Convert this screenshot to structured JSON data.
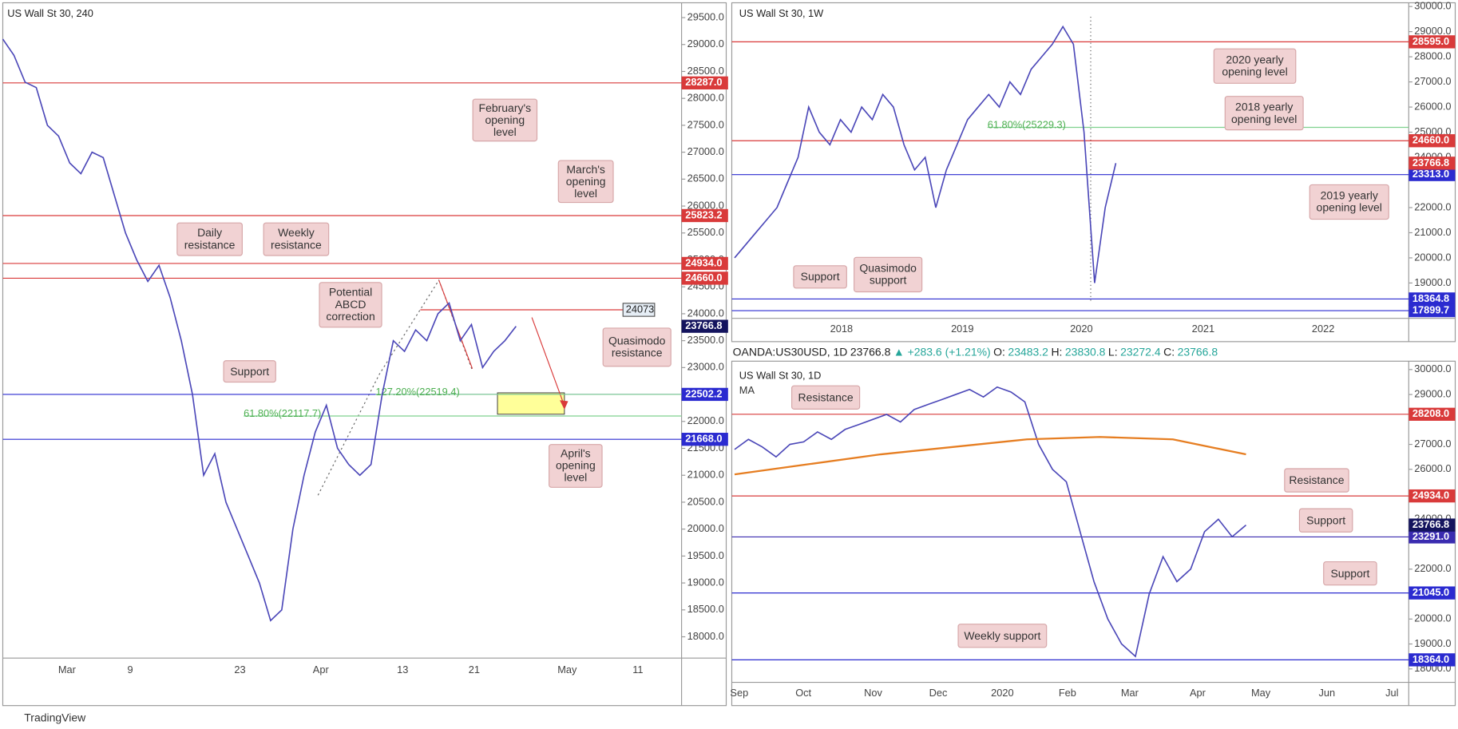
{
  "panels": [
    {
      "title": "US Wall St 30, 240",
      "ylim": [
        17604,
        29775
      ],
      "yticks": [
        {
          "value": 18000,
          "label": "18000.0"
        },
        {
          "value": 18500,
          "label": "18500.0"
        },
        {
          "value": 19000,
          "label": "19000.0"
        },
        {
          "value": 19500,
          "label": "19500.0"
        },
        {
          "value": 20000,
          "label": "20000.0"
        },
        {
          "value": 20500,
          "label": "20500.0"
        },
        {
          "value": 21000,
          "label": "21000.0"
        },
        {
          "value": 21500,
          "label": "21500.0"
        },
        {
          "value": 22000,
          "label": "22000.0"
        },
        {
          "value": 22500,
          "label": "22500.0"
        },
        {
          "value": 23000,
          "label": "23000.0"
        },
        {
          "value": 23500,
          "label": "23500.0"
        },
        {
          "value": 24000,
          "label": "24000.0"
        },
        {
          "value": 24500,
          "label": "24500.0"
        },
        {
          "value": 25000,
          "label": "25000.0"
        },
        {
          "value": 25500,
          "label": "25500.0"
        },
        {
          "value": 26000,
          "label": "26000.0"
        },
        {
          "value": 26500,
          "label": "26500.0"
        },
        {
          "value": 27000,
          "label": "27000.0"
        },
        {
          "value": 27500,
          "label": "27500.0"
        },
        {
          "value": 28000,
          "label": "28000.0"
        },
        {
          "value": 28500,
          "label": "28500.0"
        },
        {
          "value": 29000,
          "label": "29000.0"
        },
        {
          "value": 29500,
          "label": "29500.0"
        }
      ],
      "dates": [
        "Mar",
        "9",
        "23",
        "Apr",
        "13",
        "21",
        "May",
        "11"
      ],
      "levels": [
        {
          "value": 28287,
          "label": "28287.0",
          "color": "#d93a3a"
        },
        {
          "value": 25823.2,
          "label": "25823.2",
          "color": "#d93a3a"
        },
        {
          "value": 24934,
          "label": "24934.0",
          "color": "#d93a3a"
        },
        {
          "value": 24660,
          "label": "24660.0",
          "color": "#d93a3a"
        },
        {
          "value": 22502.2,
          "label": "22502.2",
          "color": "#2b2bd0"
        },
        {
          "value": 21668,
          "label": "21668.0",
          "color": "#2b2bd0"
        }
      ],
      "last": {
        "value": 23766.8,
        "label": "23766.8",
        "color": "#14145e"
      },
      "marker": 24073,
      "fibs": [
        {
          "value": 22519.4,
          "label": "127.20%(22519.4)"
        },
        {
          "value": 22117.7,
          "label": "61.80%(22117.7)"
        }
      ],
      "price": [
        29100,
        28800,
        28300,
        28200,
        27500,
        27300,
        26800,
        26600,
        27000,
        26900,
        26200,
        25500,
        25000,
        24600,
        24900,
        24300,
        23500,
        22500,
        21000,
        21400,
        20500,
        20000,
        19500,
        19000,
        18300,
        18500,
        20000,
        21000,
        21800,
        22300,
        21500,
        21200,
        21000,
        21200,
        22500,
        23500,
        23300,
        23700,
        23500,
        24000,
        24200,
        23500,
        23800,
        23000,
        23300,
        23500,
        23766.8
      ],
      "annotations": [
        "February's opening level",
        "March's opening level",
        "Daily resistance",
        "Weekly resistance",
        "Potential ABCD correction",
        "Quasimodo resistance",
        "Support",
        "April's opening level"
      ]
    },
    {
      "title": "US Wall St 30, 1W",
      "ylim": [
        17593,
        30148
      ],
      "yticks": [
        {
          "value": 18000,
          "label": "18000.0"
        },
        {
          "value": 19000,
          "label": "19000.0"
        },
        {
          "value": 20000,
          "label": "20000.0"
        },
        {
          "value": 21000,
          "label": "21000.0"
        },
        {
          "value": 22000,
          "label": "22000.0"
        },
        {
          "value": 24000,
          "label": "24000.0"
        },
        {
          "value": 25000,
          "label": "25000.0"
        },
        {
          "value": 26000,
          "label": "26000.0"
        },
        {
          "value": 27000,
          "label": "27000.0"
        },
        {
          "value": 28000,
          "label": "28000.0"
        },
        {
          "value": 29000,
          "label": "29000.0"
        },
        {
          "value": 30000,
          "label": "30000.0"
        }
      ],
      "dates": [
        "2018",
        "2019",
        "2020",
        "2021",
        "2022"
      ],
      "levels": [
        {
          "value": 28595,
          "label": "28595.0",
          "color": "#d93a3a"
        },
        {
          "value": 24660,
          "label": "24660.0",
          "color": "#d93a3a"
        },
        {
          "value": 23313,
          "label": "23313.0",
          "color": "#2b2bd0"
        },
        {
          "value": 18364.8,
          "label": "18364.8",
          "color": "#2b2bd0"
        },
        {
          "value": 17899.7,
          "label": "17899.7",
          "color": "#2b2bd0"
        }
      ],
      "last": {
        "value": 23766.8,
        "label": "23766.8",
        "color": "#d93a3a"
      },
      "fibs": [
        {
          "value": 25229.3,
          "label": "61.80%(25229.3)"
        }
      ],
      "price": [
        20000,
        20500,
        21000,
        21500,
        22000,
        23000,
        24000,
        26000,
        25000,
        24500,
        25500,
        25000,
        26000,
        25500,
        26500,
        26000,
        24500,
        23500,
        24000,
        22000,
        23500,
        24500,
        25500,
        26000,
        26500,
        26000,
        27000,
        26500,
        27500,
        28000,
        28500,
        29200,
        28500,
        25000,
        19000,
        22000,
        23766.8
      ],
      "annotations": [
        "2020 yearly opening level",
        "2018 yearly opening level",
        "2019 yearly opening level",
        "Support",
        "Quasimodo support"
      ]
    },
    {
      "title": "US Wall St 30, 1D",
      "subtitle": "MA",
      "ylim": [
        17463,
        30336
      ],
      "yticks": [
        {
          "value": 18000,
          "label": "18000.0"
        },
        {
          "value": 19000,
          "label": "19000.0"
        },
        {
          "value": 20000,
          "label": "20000.0"
        },
        {
          "value": 21000,
          "label": "21000.0"
        },
        {
          "value": 22000,
          "label": "22000.0"
        },
        {
          "value": 24000,
          "label": "24000.0"
        },
        {
          "value": 25000,
          "label": "25000.0"
        },
        {
          "value": 26000,
          "label": "26000.0"
        },
        {
          "value": 27000,
          "label": "27000.0"
        },
        {
          "value": 29000,
          "label": "29000.0"
        },
        {
          "value": 30000,
          "label": "30000.0"
        }
      ],
      "dates": [
        "Sep",
        "Oct",
        "Nov",
        "Dec",
        "2020",
        "Feb",
        "Mar",
        "Apr",
        "May",
        "Jun",
        "Jul"
      ],
      "levels": [
        {
          "value": 28208,
          "label": "28208.0",
          "color": "#d93a3a"
        },
        {
          "value": 24934,
          "label": "24934.0",
          "color": "#d93a3a"
        },
        {
          "value": 23291,
          "label": "23291.0",
          "color": "#3a2bb0"
        },
        {
          "value": 21045,
          "label": "21045.0",
          "color": "#2b2bd0"
        },
        {
          "value": 18364,
          "label": "18364.0",
          "color": "#2b2bd0"
        }
      ],
      "last": {
        "value": 23766.8,
        "label": "23766.8",
        "color": "#14145e"
      },
      "fibs": [],
      "price": [
        26800,
        27200,
        26900,
        26500,
        27000,
        27100,
        27500,
        27200,
        27600,
        27800,
        28000,
        28200,
        27900,
        28400,
        28600,
        28800,
        29000,
        29200,
        28900,
        29300,
        29100,
        28700,
        27000,
        26000,
        25500,
        23500,
        21500,
        20000,
        19000,
        18500,
        21000,
        22500,
        21500,
        22000,
        23500,
        24000,
        23300,
        23766.8
      ],
      "ma": [
        25800,
        26200,
        26600,
        26900,
        27200,
        27300,
        27200,
        26600
      ],
      "annotations": [
        "Resistance",
        "Resistance",
        "Support",
        "Support",
        "Weekly support"
      ]
    }
  ],
  "header": [
    {
      "text": "OANDA:US30USD, 1D",
      "color": "#222"
    },
    {
      "text": "23766.8",
      "color": "#222"
    },
    {
      "text": "▲ +283.6 (+1.21%)",
      "color": "#26a69a"
    },
    {
      "text": "O:",
      "color": "#222"
    },
    {
      "text": "23483.2",
      "color": "#26a69a"
    },
    {
      "text": "H:",
      "color": "#222"
    },
    {
      "text": "23830.8",
      "color": "#26a69a"
    },
    {
      "text": "L:",
      "color": "#222"
    },
    {
      "text": "23272.4",
      "color": "#26a69a"
    },
    {
      "text": "C:",
      "color": "#222"
    },
    {
      "text": "23766.8",
      "color": "#26a69a"
    }
  ],
  "brand": "TradingView"
}
